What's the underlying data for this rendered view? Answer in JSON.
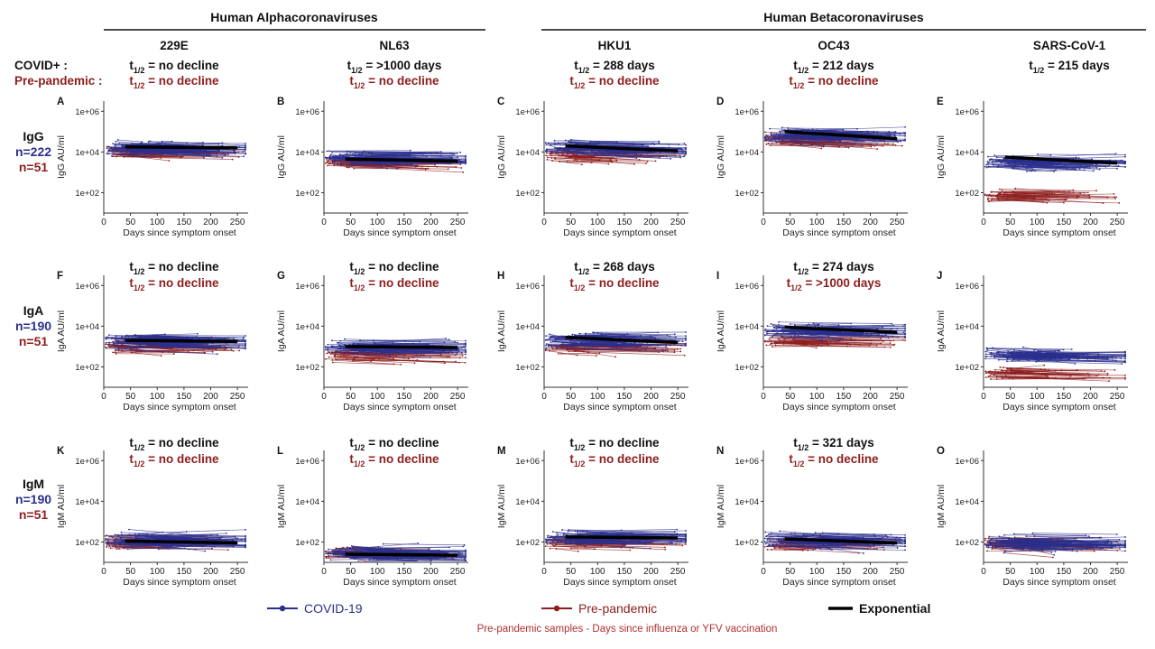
{
  "groups": [
    {
      "label": "Human Alphacoronaviruses"
    },
    {
      "label": "Human Betacoronaviruses"
    }
  ],
  "columns": [
    {
      "name": "229E"
    },
    {
      "name": "NL63"
    },
    {
      "name": "HKU1"
    },
    {
      "name": "OC43"
    },
    {
      "name": "SARS-CoV-1"
    }
  ],
  "row_legend": {
    "covid": "COVID+ :",
    "prepandemic": "Pre-pandemic :"
  },
  "halflife_symbol": {
    "main": "t",
    "sub": "1/2"
  },
  "rows": [
    {
      "isotype": "IgG",
      "n_covid": "n=222",
      "n_pre": "n=51",
      "ylabel": "IgG AU/ml"
    },
    {
      "isotype": "IgA",
      "n_covid": "n=190",
      "n_pre": "n=51",
      "ylabel": "IgA AU/ml"
    },
    {
      "isotype": "IgM",
      "n_covid": "n=190",
      "n_pre": "n=51",
      "ylabel": "IgM AU/ml"
    }
  ],
  "legend": {
    "covid": "COVID-19",
    "pre": "Pre-pandemic",
    "exp": "Exponential",
    "footnote": "Pre-pandemic samples - Days since influenza or YFV vaccination"
  },
  "colors": {
    "covid": "#2b2f8c",
    "pre": "#8e1d1d",
    "fit": "#000000",
    "axis": "#333333"
  },
  "chart_data": [
    {
      "panel": "A",
      "type": "line",
      "virus": "229E",
      "isotype": "IgG",
      "covid_halflife": "= no decline",
      "pre_halflife": "= no decline",
      "ylabel": "IgG AU/ml",
      "xlabel": "Days since symptom onset",
      "xlim": [
        0,
        270
      ],
      "ylim_log10": [
        1,
        6.5
      ],
      "x_ticks": [
        0,
        50,
        100,
        150,
        200,
        250
      ],
      "y_ticks": [
        "1e+02",
        "1e+04",
        "1e+06"
      ],
      "covid_log10_center": 4.2,
      "pre_log10_center": 4.0,
      "fit": {
        "x": [
          40,
          250
        ],
        "y_log10": [
          4.25,
          4.2
        ]
      }
    },
    {
      "panel": "B",
      "type": "line",
      "virus": "NL63",
      "isotype": "IgG",
      "covid_halflife": "= >1000 days",
      "pre_halflife": "= no decline",
      "ylabel": "IgG AU/ml",
      "xlabel": "Days since symptom onset",
      "xlim": [
        0,
        270
      ],
      "ylim_log10": [
        1,
        6.5
      ],
      "x_ticks": [
        0,
        50,
        100,
        150,
        200,
        250
      ],
      "y_ticks": [
        "1e+02",
        "1e+04",
        "1e+06"
      ],
      "covid_log10_center": 3.7,
      "pre_log10_center": 3.5,
      "fit": {
        "x": [
          40,
          250
        ],
        "y_log10": [
          3.65,
          3.55
        ]
      }
    },
    {
      "panel": "C",
      "type": "line",
      "virus": "HKU1",
      "isotype": "IgG",
      "covid_halflife": "= 288 days",
      "pre_halflife": "= no decline",
      "ylabel": "IgG AU/ml",
      "xlabel": "Days since symptom onset",
      "xlim": [
        0,
        270
      ],
      "ylim_log10": [
        1,
        6.5
      ],
      "x_ticks": [
        0,
        50,
        100,
        150,
        200,
        250
      ],
      "y_ticks": [
        "1e+02",
        "1e+04",
        "1e+06"
      ],
      "covid_log10_center": 4.2,
      "pre_log10_center": 3.8,
      "fit": {
        "x": [
          40,
          250
        ],
        "y_log10": [
          4.3,
          4.05
        ]
      }
    },
    {
      "panel": "D",
      "type": "line",
      "virus": "OC43",
      "isotype": "IgG",
      "covid_halflife": "= 212 days",
      "pre_halflife": "= no decline",
      "ylabel": "IgG AU/ml",
      "xlabel": "Days since symptom onset",
      "xlim": [
        0,
        270
      ],
      "ylim_log10": [
        1,
        6.5
      ],
      "x_ticks": [
        0,
        50,
        100,
        150,
        200,
        250
      ],
      "y_ticks": [
        "1e+02",
        "1e+04",
        "1e+06"
      ],
      "covid_log10_center": 4.85,
      "pre_log10_center": 4.6,
      "fit": {
        "x": [
          40,
          250
        ],
        "y_log10": [
          5.0,
          4.65
        ]
      }
    },
    {
      "panel": "E",
      "type": "line",
      "virus": "SARS-CoV-1",
      "isotype": "IgG",
      "covid_halflife": "= 215 days",
      "pre_halflife": "",
      "ylabel": "IgG AU/ml",
      "xlabel": "Days since symptom onset",
      "xlim": [
        0,
        270
      ],
      "ylim_log10": [
        1,
        6.5
      ],
      "x_ticks": [
        0,
        50,
        100,
        150,
        200,
        250
      ],
      "y_ticks": [
        "1e+02",
        "1e+04",
        "1e+06"
      ],
      "covid_log10_center": 3.5,
      "pre_log10_center": 1.9,
      "fit": {
        "x": [
          40,
          250
        ],
        "y_log10": [
          3.75,
          3.45
        ]
      }
    },
    {
      "panel": "F",
      "type": "line",
      "virus": "229E",
      "isotype": "IgA",
      "covid_halflife": "= no decline",
      "pre_halflife": "= no decline",
      "ylabel": "IgA AU/ml",
      "xlabel": "Days since symptom onset",
      "xlim": [
        0,
        270
      ],
      "ylim_log10": [
        1,
        6.5
      ],
      "x_ticks": [
        0,
        50,
        100,
        150,
        200,
        250
      ],
      "y_ticks": [
        "1e+02",
        "1e+04",
        "1e+06"
      ],
      "covid_log10_center": 3.3,
      "pre_log10_center": 3.0,
      "fit": {
        "x": [
          40,
          250
        ],
        "y_log10": [
          3.3,
          3.25
        ]
      }
    },
    {
      "panel": "G",
      "type": "line",
      "virus": "NL63",
      "isotype": "IgA",
      "covid_halflife": "= no decline",
      "pre_halflife": "= no decline",
      "ylabel": "IgA AU/ml",
      "xlabel": "Days since symptom onset",
      "xlim": [
        0,
        270
      ],
      "ylim_log10": [
        1,
        6.5
      ],
      "x_ticks": [
        0,
        50,
        100,
        150,
        200,
        250
      ],
      "y_ticks": [
        "1e+02",
        "1e+04",
        "1e+06"
      ],
      "covid_log10_center": 3.0,
      "pre_log10_center": 2.6,
      "fit": {
        "x": [
          40,
          250
        ],
        "y_log10": [
          3.0,
          2.95
        ]
      }
    },
    {
      "panel": "H",
      "type": "line",
      "virus": "HKU1",
      "isotype": "IgA",
      "covid_halflife": "= 268 days",
      "pre_halflife": "= no decline",
      "ylabel": "IgA AU/ml",
      "xlabel": "Days since symptom onset",
      "xlim": [
        0,
        270
      ],
      "ylim_log10": [
        1,
        6.5
      ],
      "x_ticks": [
        0,
        50,
        100,
        150,
        200,
        250
      ],
      "y_ticks": [
        "1e+02",
        "1e+04",
        "1e+06"
      ],
      "covid_log10_center": 3.3,
      "pre_log10_center": 3.0,
      "fit": {
        "x": [
          40,
          250
        ],
        "y_log10": [
          3.45,
          3.2
        ]
      }
    },
    {
      "panel": "I",
      "type": "line",
      "virus": "OC43",
      "isotype": "IgA",
      "covid_halflife": "= 274 days",
      "pre_halflife": "= >1000 days",
      "ylabel": "IgA AU/ml",
      "xlabel": "Days since symptom onset",
      "xlim": [
        0,
        270
      ],
      "ylim_log10": [
        1,
        6.5
      ],
      "x_ticks": [
        0,
        50,
        100,
        150,
        200,
        250
      ],
      "y_ticks": [
        "1e+02",
        "1e+04",
        "1e+06"
      ],
      "covid_log10_center": 3.8,
      "pre_log10_center": 3.3,
      "fit": {
        "x": [
          40,
          250
        ],
        "y_log10": [
          3.95,
          3.7
        ]
      }
    },
    {
      "panel": "J",
      "type": "line",
      "virus": "SARS-CoV-1",
      "isotype": "IgA",
      "covid_halflife": "",
      "pre_halflife": "",
      "ylabel": "IgA AU/ml",
      "xlabel": "Days since symptom onset",
      "xlim": [
        0,
        270
      ],
      "ylim_log10": [
        1,
        6.5
      ],
      "x_ticks": [
        0,
        50,
        100,
        150,
        200,
        250
      ],
      "y_ticks": [
        "1e+02",
        "1e+04",
        "1e+06"
      ],
      "covid_log10_center": 2.6,
      "pre_log10_center": 1.7,
      "fit": null
    },
    {
      "panel": "K",
      "type": "line",
      "virus": "229E",
      "isotype": "IgM",
      "covid_halflife": "= no decline",
      "pre_halflife": "= no decline",
      "ylabel": "IgM AU/ml",
      "xlabel": "Days since symptom onset",
      "xlim": [
        0,
        270
      ],
      "ylim_log10": [
        1,
        6.5
      ],
      "x_ticks": [
        0,
        50,
        100,
        150,
        200,
        250
      ],
      "y_ticks": [
        "1e+02",
        "1e+04",
        "1e+06"
      ],
      "covid_log10_center": 2.1,
      "pre_log10_center": 2.0,
      "fit": {
        "x": [
          40,
          250
        ],
        "y_log10": [
          2.05,
          1.95
        ]
      }
    },
    {
      "panel": "L",
      "type": "line",
      "virus": "NL63",
      "isotype": "IgM",
      "covid_halflife": "= no decline",
      "pre_halflife": "= no decline",
      "ylabel": "IgM AU/ml",
      "xlabel": "Days since symptom onset",
      "xlim": [
        0,
        270
      ],
      "ylim_log10": [
        1,
        6.5
      ],
      "x_ticks": [
        0,
        50,
        100,
        150,
        200,
        250
      ],
      "y_ticks": [
        "1e+02",
        "1e+04",
        "1e+06"
      ],
      "covid_log10_center": 1.45,
      "pre_log10_center": 1.5,
      "fit": {
        "x": [
          40,
          250
        ],
        "y_log10": [
          1.4,
          1.35
        ]
      }
    },
    {
      "panel": "M",
      "type": "line",
      "virus": "HKU1",
      "isotype": "IgM",
      "covid_halflife": "=  no decline",
      "pre_halflife": "= no decline",
      "ylabel": "IgM AU/ml",
      "xlabel": "Days since symptom onset",
      "xlim": [
        0,
        270
      ],
      "ylim_log10": [
        1,
        6.5
      ],
      "x_ticks": [
        0,
        50,
        100,
        150,
        200,
        250
      ],
      "y_ticks": [
        "1e+02",
        "1e+04",
        "1e+06"
      ],
      "covid_log10_center": 2.25,
      "pre_log10_center": 2.0,
      "fit": {
        "x": [
          40,
          250
        ],
        "y_log10": [
          2.25,
          2.2
        ]
      }
    },
    {
      "panel": "N",
      "type": "line",
      "virus": "OC43",
      "isotype": "IgM",
      "covid_halflife": "= 321 days",
      "pre_halflife": "= no decline",
      "ylabel": "IgM AU/ml",
      "xlabel": "Days since symptom onset",
      "xlim": [
        0,
        270
      ],
      "ylim_log10": [
        1,
        6.5
      ],
      "x_ticks": [
        0,
        50,
        100,
        150,
        200,
        250
      ],
      "y_ticks": [
        "1e+02",
        "1e+04",
        "1e+06"
      ],
      "covid_log10_center": 2.1,
      "pre_log10_center": 1.9,
      "fit": {
        "x": [
          40,
          250
        ],
        "y_log10": [
          2.15,
          1.95
        ]
      }
    },
    {
      "panel": "O",
      "type": "line",
      "virus": "SARS-CoV-1",
      "isotype": "IgM",
      "covid_halflife": "",
      "pre_halflife": "",
      "ylabel": "IgM AU/ml",
      "xlabel": "Days since symptom onset",
      "xlim": [
        0,
        270
      ],
      "ylim_log10": [
        1,
        6.5
      ],
      "x_ticks": [
        0,
        50,
        100,
        150,
        200,
        250
      ],
      "y_ticks": [
        "1e+02",
        "1e+04",
        "1e+06"
      ],
      "covid_log10_center": 2.0,
      "pre_log10_center": 1.9,
      "fit": null
    }
  ]
}
